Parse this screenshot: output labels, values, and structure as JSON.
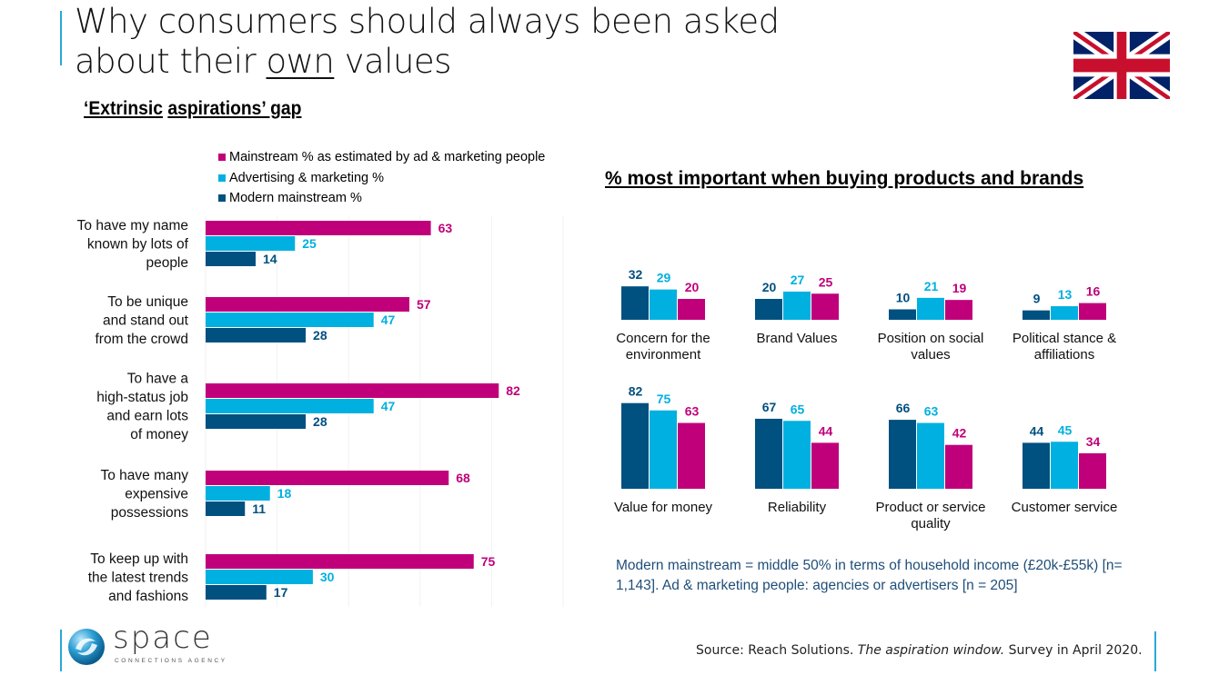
{
  "header": {
    "title_line1": "Why consumers should always been asked",
    "title_line2_pre": "about their ",
    "title_line2_underlined": "own",
    "title_line2_post": " values",
    "flag_icon": "uk-flag-icon"
  },
  "left_panel": {
    "subtitle_part1": "‘Extrinsic",
    "subtitle_part2": "aspirations’ gap"
  },
  "colors": {
    "mainstream_estimated": "#c0007a",
    "advertising_marketing": "#00b0e0",
    "modern_mainstream": "#005080",
    "accent_line": "#29a9d8",
    "note_text": "#1f4e79"
  },
  "right_panel": {
    "title": "% most important when buying products and brands",
    "note": "Modern mainstream = middle 50% in terms of household income (£20k-£55k) [n=  1,143]. Ad & marketing people: agencies or advertisers [n = 205]"
  },
  "footer": {
    "source_pre": "Source: Reach Solutions. ",
    "source_italic": "The aspiration window.",
    "source_post": " Survey in April 2020.",
    "logo_word": "space",
    "logo_tagline": "CONNECTIONS AGENCY"
  },
  "chart_data": [
    {
      "type": "bar",
      "orientation": "horizontal",
      "title": "‘Extrinsic aspirations’ gap",
      "legend": [
        "Mainstream % as estimated by ad & marketing people",
        "Advertising & marketing %",
        "Modern mainstream %"
      ],
      "legend_position": "top",
      "categories": [
        [
          "To have my name",
          "known by lots of",
          "people"
        ],
        [
          "To be unique",
          "and stand out",
          "from the crowd"
        ],
        [
          "To have a",
          "high-status job",
          "and earn lots",
          "of money"
        ],
        [
          "To have many",
          "expensive",
          "possessions"
        ],
        [
          "To keep up with",
          "the latest trends",
          "and fashions"
        ]
      ],
      "series": [
        {
          "name": "Mainstream % as estimated by ad & marketing people",
          "values": [
            63,
            57,
            82,
            68,
            75
          ]
        },
        {
          "name": "Advertising & marketing %",
          "values": [
            25,
            47,
            47,
            18,
            30
          ]
        },
        {
          "name": "Modern mainstream %",
          "values": [
            14,
            28,
            28,
            11,
            17
          ]
        }
      ],
      "xlim": [
        0,
        100
      ],
      "grid": true
    },
    {
      "type": "bar",
      "orientation": "vertical",
      "title": "% most important when buying products and brands",
      "categories": [
        [
          "Concern for the",
          "environment"
        ],
        [
          "Brand Values"
        ],
        [
          "Position on social",
          "values"
        ],
        [
          "Political stance &",
          "affiliations"
        ],
        [
          "Value for money"
        ],
        [
          "Reliability"
        ],
        [
          "Product or service",
          "quality"
        ],
        [
          "Customer service"
        ]
      ],
      "series": [
        {
          "name": "Modern mainstream %",
          "values": [
            32,
            20,
            10,
            9,
            82,
            67,
            66,
            44
          ]
        },
        {
          "name": "Advertising & marketing %",
          "values": [
            29,
            27,
            21,
            13,
            75,
            65,
            63,
            45
          ]
        },
        {
          "name": "Mainstream % as estimated by ad & marketing people",
          "values": [
            20,
            25,
            19,
            16,
            63,
            44,
            42,
            34
          ]
        }
      ],
      "ylim": [
        0,
        100
      ],
      "grid": true
    }
  ]
}
